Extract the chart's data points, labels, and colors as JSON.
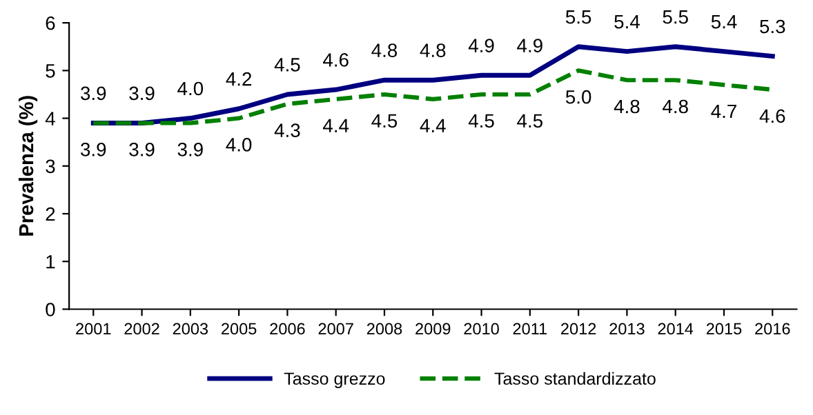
{
  "chart_data": {
    "type": "line",
    "ylabel": "Prevalenza (%)",
    "categories": [
      "2001",
      "2002",
      "2003",
      "2005",
      "2006",
      "2007",
      "2008",
      "2009",
      "2010",
      "2011",
      "2012",
      "2013",
      "2014",
      "2015",
      "2016"
    ],
    "series": [
      {
        "name": "Tasso grezzo",
        "color": "#000080",
        "line_style": "solid",
        "values": [
          3.9,
          3.9,
          4.0,
          4.2,
          4.5,
          4.6,
          4.8,
          4.8,
          4.9,
          4.9,
          5.5,
          5.4,
          5.5,
          5.4,
          5.3
        ],
        "value_labels": [
          "3.9",
          "3.9",
          "4.0",
          "4.2",
          "4.5",
          "4.6",
          "4.8",
          "4.8",
          "4.9",
          "4.9",
          "5.5",
          "5.4",
          "5.5",
          "5.4",
          "5.3"
        ]
      },
      {
        "name": "Tasso standardizzato",
        "color": "#008000",
        "line_style": "dashed",
        "values": [
          3.9,
          3.9,
          3.9,
          4.0,
          4.3,
          4.4,
          4.5,
          4.4,
          4.5,
          4.5,
          5.0,
          4.8,
          4.8,
          4.7,
          4.6
        ],
        "value_labels": [
          "3.9",
          "3.9",
          "3.9",
          "4.0",
          "4.3",
          "4.4",
          "4.5",
          "4.4",
          "4.5",
          "4.5",
          "5.0",
          "4.8",
          "4.8",
          "4.7",
          "4.6"
        ]
      }
    ],
    "ylim": [
      0,
      6
    ],
    "yticks": [
      0,
      1,
      2,
      3,
      4,
      5,
      6
    ],
    "grid": false,
    "legend": "bottom",
    "marker": "none"
  }
}
